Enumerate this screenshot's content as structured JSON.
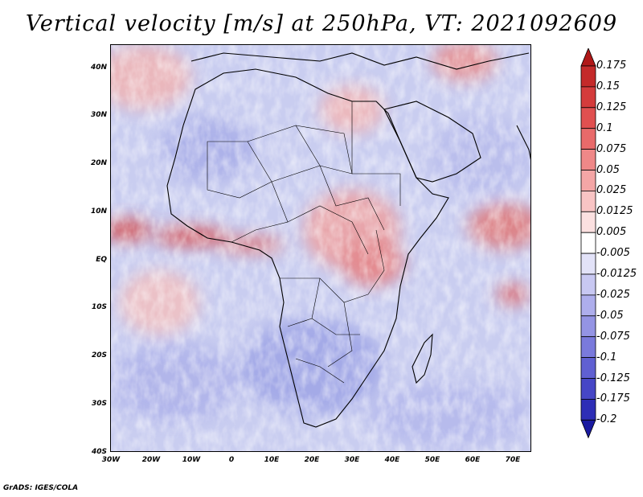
{
  "title": "Vertical velocity [m/s] at 250hPa, VT: 2021092609",
  "credit": "GrADS: IGES/COLA",
  "map": {
    "lat_labels": [
      "40N",
      "30N",
      "20N",
      "10N",
      "EQ",
      "10S",
      "20S",
      "30S",
      "40S"
    ],
    "lon_labels": [
      "30W",
      "20W",
      "10W",
      "0",
      "10E",
      "20E",
      "30E",
      "40E",
      "50E",
      "60E",
      "70E"
    ],
    "lat_range": [
      -40,
      45
    ],
    "lon_range": [
      -30,
      75
    ],
    "background_color": "#d9dcf2"
  },
  "colorbar": {
    "levels": [
      "0.175",
      "0.15",
      "0.125",
      "0.1",
      "0.075",
      "0.05",
      "0.025",
      "0.0125",
      "0.005",
      "-0.005",
      "-0.0125",
      "-0.025",
      "-0.05",
      "-0.075",
      "-0.1",
      "-0.125",
      "-0.175",
      "-0.2"
    ],
    "colors": [
      "#b01818",
      "#c42a2a",
      "#d43c3c",
      "#e05050",
      "#e86a6a",
      "#ef8888",
      "#f4a6a6",
      "#f8c4c4",
      "#fbe0e0",
      "#ffffff",
      "#e2e2f8",
      "#c8c8f2",
      "#aeaeec",
      "#9494e4",
      "#7a7adc",
      "#6060d2",
      "#4646c6",
      "#2e2eb6",
      "#1a1aa0"
    ]
  }
}
